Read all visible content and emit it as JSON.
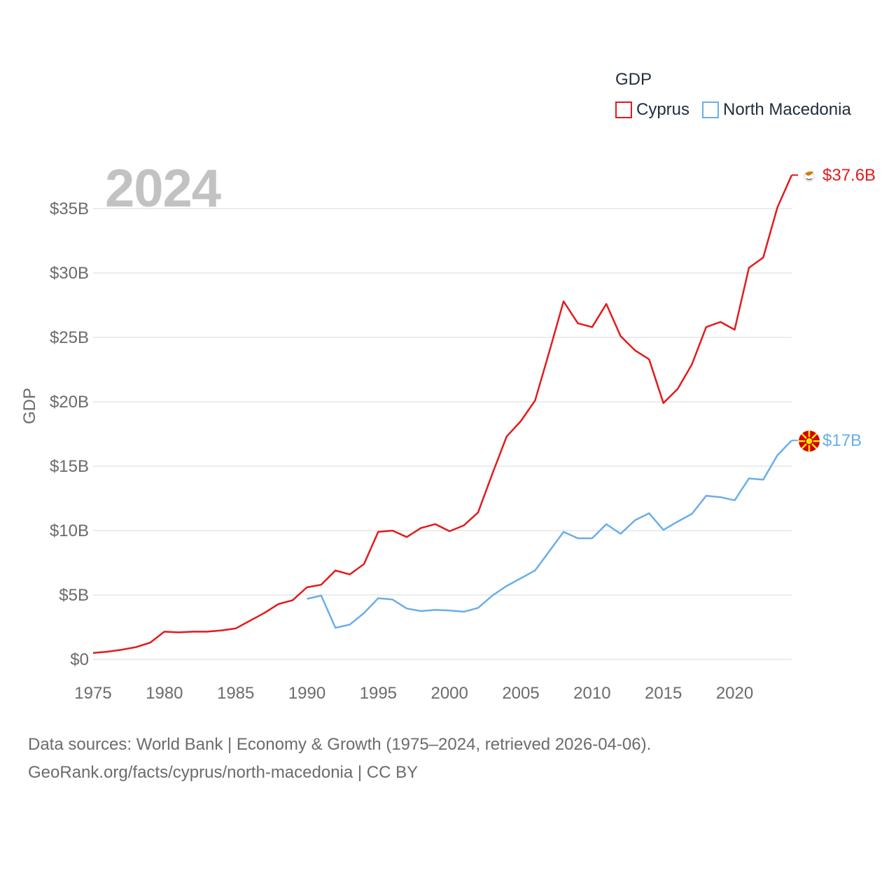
{
  "legend": {
    "title": "GDP",
    "items": [
      {
        "label": "Cyprus",
        "color": "#e31a1c"
      },
      {
        "label": "North Macedonia",
        "color": "#6aaee8"
      }
    ]
  },
  "year_label": "2024",
  "source": {
    "line1": "Data sources: World Bank | Economy & Growth (1975–2024, retrieved 2026-04-06).",
    "line2": "GeoRank.org/facts/cyprus/north-macedonia | CC BY"
  },
  "chart_data": {
    "type": "line",
    "title": "",
    "xlabel": "",
    "ylabel": "GDP",
    "xlim": [
      1975,
      2024
    ],
    "ylim": [
      0,
      37.6
    ],
    "x_ticks": [
      1975,
      1980,
      1985,
      1990,
      1995,
      2000,
      2005,
      2010,
      2015,
      2020
    ],
    "y_ticks": [
      {
        "value": 0,
        "label": "$0"
      },
      {
        "value": 5,
        "label": "$5B"
      },
      {
        "value": 10,
        "label": "$10B"
      },
      {
        "value": 15,
        "label": "$15B"
      },
      {
        "value": 20,
        "label": "$20B"
      },
      {
        "value": 25,
        "label": "$25B"
      },
      {
        "value": 30,
        "label": "$30B"
      },
      {
        "value": 35,
        "label": "$35B"
      }
    ],
    "grid": true,
    "units": "billion USD",
    "series": [
      {
        "name": "Cyprus",
        "color": "#e31a1c",
        "end_label": "$37.6B",
        "x": [
          1975,
          1976,
          1977,
          1978,
          1979,
          1980,
          1981,
          1982,
          1983,
          1984,
          1985,
          1986,
          1987,
          1988,
          1989,
          1990,
          1991,
          1992,
          1993,
          1994,
          1995,
          1996,
          1997,
          1998,
          1999,
          2000,
          2001,
          2002,
          2003,
          2004,
          2005,
          2006,
          2007,
          2008,
          2009,
          2010,
          2011,
          2012,
          2013,
          2014,
          2015,
          2016,
          2017,
          2018,
          2019,
          2020,
          2021,
          2022,
          2023,
          2024
        ],
        "values": [
          0.5,
          0.6,
          0.75,
          0.95,
          1.3,
          2.15,
          2.1,
          2.15,
          2.15,
          2.25,
          2.4,
          3.0,
          3.6,
          4.3,
          4.6,
          5.6,
          5.8,
          6.9,
          6.6,
          7.4,
          9.9,
          10.0,
          9.5,
          10.2,
          10.5,
          9.95,
          10.4,
          11.4,
          14.4,
          17.3,
          18.5,
          20.1,
          23.9,
          27.8,
          26.1,
          25.8,
          27.6,
          25.1,
          24.0,
          23.3,
          19.9,
          21.0,
          22.9,
          25.8,
          26.2,
          25.6,
          30.4,
          31.2,
          35.1,
          37.6
        ]
      },
      {
        "name": "North Macedonia",
        "color": "#6aaee8",
        "end_label": "$17B",
        "x": [
          1990,
          1991,
          1992,
          1993,
          1994,
          1995,
          1996,
          1997,
          1998,
          1999,
          2000,
          2001,
          2002,
          2003,
          2004,
          2005,
          2006,
          2007,
          2008,
          2009,
          2010,
          2011,
          2012,
          2013,
          2014,
          2015,
          2016,
          2017,
          2018,
          2019,
          2020,
          2021,
          2022,
          2023,
          2024
        ],
        "values": [
          4.7,
          4.95,
          2.45,
          2.7,
          3.6,
          4.75,
          4.65,
          3.95,
          3.75,
          3.85,
          3.8,
          3.7,
          4.0,
          4.95,
          5.7,
          6.3,
          6.9,
          8.4,
          9.9,
          9.4,
          9.4,
          10.5,
          9.75,
          10.8,
          11.35,
          10.05,
          10.7,
          11.3,
          12.7,
          12.6,
          12.35,
          14.05,
          13.95,
          15.85,
          17.0
        ]
      }
    ]
  }
}
